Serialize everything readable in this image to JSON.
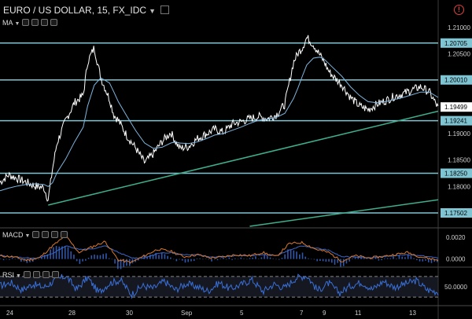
{
  "header": {
    "symbol_title": "EURO / US DOLLAR, 15, FX_IDC",
    "alert_glyph": "!"
  },
  "indicators": {
    "ma": {
      "label": "MA"
    },
    "macd": {
      "label": "MACD"
    },
    "rsi": {
      "label": "RSI"
    }
  },
  "colors": {
    "price_line": "#ffffff",
    "ma_line": "#7fb6e0",
    "horizontal_level": "#7fc4d2",
    "trend_line": "#3fae8c",
    "macd_line": "#d9782e",
    "macd_signal": "#3a66c8",
    "rsi_line": "#3a6fd8",
    "current_price_label": "#ffffff"
  },
  "chart_data": [
    {
      "type": "line",
      "title": "EURO / US DOLLAR, 15, FX_IDC",
      "x_tick_labels": [
        "24",
        "28",
        "30",
        "Sep",
        "5",
        "7",
        "9",
        "11",
        "13"
      ],
      "y_tick_labels": [
        "1.21000",
        "1.20500",
        "1.20000",
        "1.19500",
        "1.19000",
        "1.18500",
        "1.18000",
        "1.17500"
      ],
      "ylim": [
        1.1725,
        1.2125
      ],
      "levels": [
        1.20705,
        1.2001,
        1.19241,
        1.1825,
        1.17502
      ],
      "current_price": 1.19499,
      "trend_lines": [
        {
          "from": {
            "x": 0.11,
            "y": 1.1765
          },
          "to": {
            "x": 1.0,
            "y": 1.1942
          }
        },
        {
          "from": {
            "x": 0.57,
            "y": 1.1725
          },
          "to": {
            "x": 1.0,
            "y": 1.1775
          }
        }
      ],
      "x": [
        0,
        0.02,
        0.04,
        0.06,
        0.08,
        0.1,
        0.11,
        0.12,
        0.13,
        0.15,
        0.17,
        0.19,
        0.2,
        0.215,
        0.23,
        0.25,
        0.26,
        0.27,
        0.29,
        0.31,
        0.33,
        0.35,
        0.37,
        0.39,
        0.4,
        0.41,
        0.43,
        0.45,
        0.47,
        0.49,
        0.51,
        0.53,
        0.55,
        0.57,
        0.59,
        0.61,
        0.63,
        0.65,
        0.67,
        0.68,
        0.69,
        0.7,
        0.715,
        0.73,
        0.74,
        0.75,
        0.76,
        0.78,
        0.8,
        0.82,
        0.84,
        0.86,
        0.88,
        0.9,
        0.92,
        0.94,
        0.96,
        0.98,
        1.0
      ],
      "series": [
        {
          "name": "",
          "values": [
            1.1808,
            1.1822,
            1.1815,
            1.1808,
            1.1801,
            1.1798,
            1.1775,
            1.1834,
            1.1882,
            1.1925,
            1.1958,
            1.1972,
            1.2035,
            1.2062,
            1.2005,
            1.1965,
            1.1935,
            1.1925,
            1.1895,
            1.1872,
            1.1845,
            1.1862,
            1.1885,
            1.1902,
            1.1886,
            1.1872,
            1.1875,
            1.189,
            1.1899,
            1.1908,
            1.1902,
            1.1918,
            1.1922,
            1.1928,
            1.1932,
            1.1928,
            1.1935,
            1.1955,
            1.2035,
            1.2051,
            1.2062,
            1.2081,
            1.2068,
            1.2048,
            1.2035,
            1.2018,
            1.2008,
            1.1992,
            1.1968,
            1.1952,
            1.1945,
            1.1955,
            1.1962,
            1.197,
            1.1975,
            1.1982,
            1.1988,
            1.1978,
            1.1948
          ]
        },
        {
          "name": "MA",
          "values": [
            1.1792,
            1.1797,
            1.1801,
            1.1804,
            1.1805,
            1.1804,
            1.18,
            1.1807,
            1.1826,
            1.1852,
            1.1884,
            1.1912,
            1.1952,
            1.1991,
            1.2005,
            1.1995,
            1.1978,
            1.196,
            1.1932,
            1.1905,
            1.1882,
            1.1872,
            1.1874,
            1.1882,
            1.1884,
            1.1882,
            1.1881,
            1.1884,
            1.189,
            1.1897,
            1.19,
            1.1906,
            1.1912,
            1.1919,
            1.1925,
            1.1927,
            1.193,
            1.1938,
            1.1966,
            1.1986,
            1.2008,
            1.2029,
            1.2042,
            1.2044,
            1.204,
            1.2032,
            1.2024,
            1.2008,
            1.1988,
            1.1972,
            1.196,
            1.1958,
            1.196,
            1.1964,
            1.1968,
            1.1973,
            1.1978,
            1.1978,
            1.1968
          ]
        }
      ]
    },
    {
      "type": "line",
      "title": "MACD",
      "y_tick_labels": [
        "0.0020",
        "0.0000"
      ],
      "ylim": [
        -0.0006,
        0.0027
      ],
      "x": [
        0,
        0.03,
        0.06,
        0.09,
        0.12,
        0.15,
        0.18,
        0.21,
        0.24,
        0.27,
        0.3,
        0.33,
        0.36,
        0.39,
        0.42,
        0.45,
        0.48,
        0.51,
        0.54,
        0.57,
        0.6,
        0.63,
        0.66,
        0.69,
        0.72,
        0.75,
        0.78,
        0.81,
        0.84,
        0.87,
        0.9,
        0.93,
        0.96,
        1.0
      ],
      "series": [
        {
          "name": "MACD",
          "values": [
            0.0003,
            0.0002,
            -0.0001,
            0.0001,
            0.0012,
            0.0021,
            0.0006,
            0.0011,
            0.0016,
            -0.0001,
            -0.0003,
            0.0003,
            0.0009,
            0.0007,
            0.0002,
            0.0004,
            0.0001,
            0.0002,
            0.0004,
            0.0003,
            0.0006,
            0.0002,
            0.0014,
            0.0015,
            0.0009,
            0.0006,
            -0.0002,
            0.0003,
            0.0001,
            0.0002,
            0.0004,
            0.0006,
            0.0002,
            -0.0001
          ]
        },
        {
          "name": "Signal",
          "values": [
            0.0003,
            0.0002,
            0.0001,
            0.0001,
            0.0005,
            0.0012,
            0.0009,
            0.0009,
            0.0012,
            0.0006,
            0.0001,
            0.0001,
            0.0005,
            0.0006,
            0.0004,
            0.0004,
            0.0002,
            0.0002,
            0.0003,
            0.0003,
            0.0004,
            0.0003,
            0.0008,
            0.0012,
            0.001,
            0.0008,
            0.0002,
            0.0002,
            0.0001,
            0.0002,
            0.0003,
            0.0004,
            0.0003,
            0.0001
          ]
        }
      ]
    },
    {
      "type": "line",
      "title": "RSI",
      "y_tick_labels": [
        "50.0000"
      ],
      "ylim": [
        15,
        85
      ],
      "levels": [
        70,
        30
      ],
      "x": [
        0,
        0.025,
        0.05,
        0.075,
        0.1,
        0.125,
        0.15,
        0.175,
        0.2,
        0.225,
        0.25,
        0.275,
        0.3,
        0.325,
        0.35,
        0.375,
        0.4,
        0.425,
        0.45,
        0.475,
        0.5,
        0.525,
        0.55,
        0.575,
        0.6,
        0.625,
        0.65,
        0.675,
        0.7,
        0.725,
        0.75,
        0.775,
        0.8,
        0.825,
        0.85,
        0.875,
        0.9,
        0.925,
        0.95,
        0.975,
        1.0
      ],
      "series": [
        {
          "name": "RSI",
          "values": [
            52,
            58,
            44,
            55,
            49,
            62,
            71,
            45,
            68,
            39,
            57,
            63,
            35,
            52,
            47,
            61,
            44,
            56,
            50,
            42,
            58,
            46,
            54,
            64,
            41,
            55,
            48,
            67,
            72,
            43,
            57,
            38,
            52,
            59,
            45,
            61,
            49,
            56,
            62,
            44,
            40
          ]
        }
      ]
    }
  ]
}
